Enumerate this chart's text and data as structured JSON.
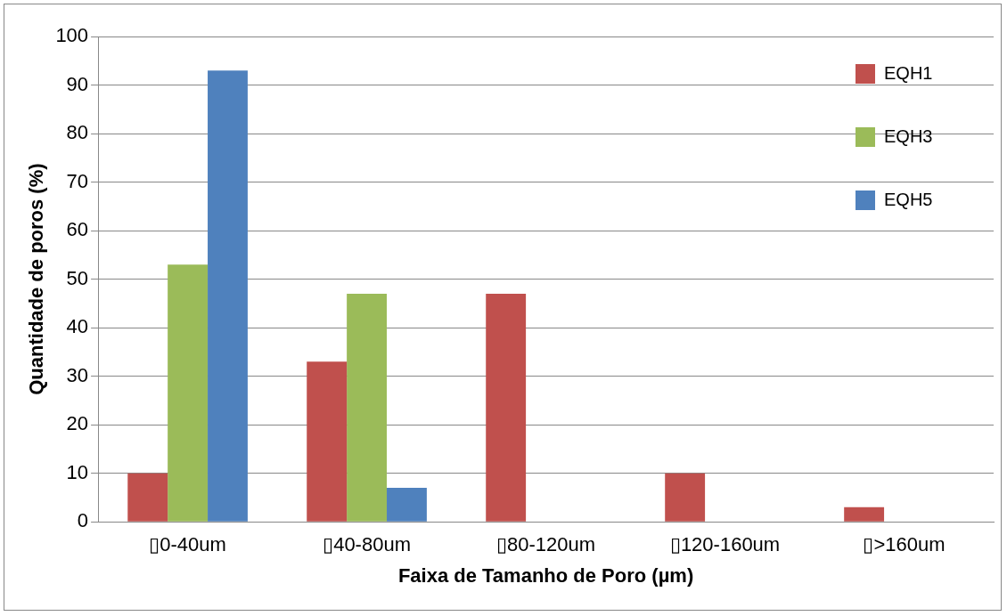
{
  "chart_data": {
    "type": "bar",
    "xlabel": "Faixa de Tamanho de Poro (µm)",
    "ylabel": "Quantidade de poros (%)",
    "categories": [
      "▯0-40um",
      "▯40-80um",
      "▯80-120um",
      "▯120-160um",
      "▯>160um"
    ],
    "series": [
      {
        "name": "EQH1",
        "color": "#c0504d",
        "values": [
          10,
          33,
          47,
          10,
          3
        ]
      },
      {
        "name": "EQH3",
        "color": "#9bbb59",
        "values": [
          53,
          47,
          0,
          0,
          0
        ]
      },
      {
        "name": "EQH5",
        "color": "#4f81bd",
        "values": [
          93,
          7,
          0,
          0,
          0
        ]
      }
    ],
    "ylim": [
      0,
      100
    ],
    "yticks": [
      0,
      10,
      20,
      30,
      40,
      50,
      60,
      70,
      80,
      90,
      100
    ],
    "grid": "y",
    "legend": "top right"
  }
}
